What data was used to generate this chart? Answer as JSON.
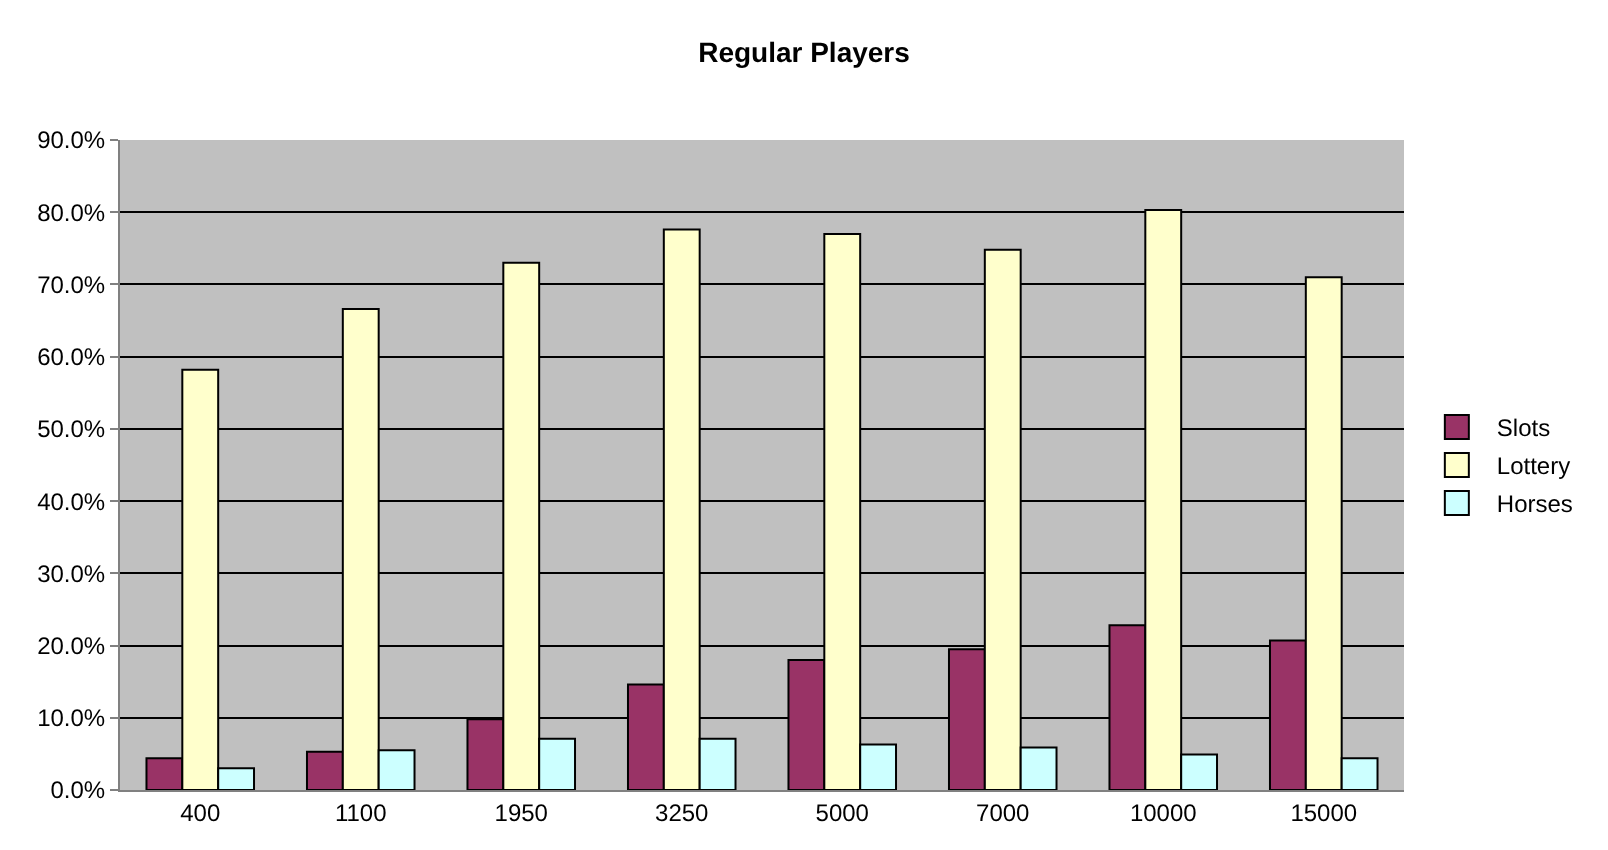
{
  "chart_data": {
    "type": "bar",
    "title": "Regular Players",
    "categories": [
      "400",
      "1100",
      "1950",
      "3250",
      "5000",
      "7000",
      "10000",
      "15000"
    ],
    "series": [
      {
        "name": "Slots",
        "color": "#993366",
        "values": [
          4.4,
          5.3,
          9.8,
          14.6,
          18.0,
          19.5,
          22.8,
          20.7
        ]
      },
      {
        "name": "Lottery",
        "color": "#ffffcc",
        "values": [
          58.2,
          66.6,
          73.0,
          77.6,
          77.0,
          74.8,
          80.3,
          71.0
        ]
      },
      {
        "name": "Horses",
        "color": "#ccffff",
        "values": [
          3.0,
          5.5,
          7.1,
          7.1,
          6.3,
          5.9,
          4.9,
          4.4
        ]
      }
    ],
    "ylim": [
      0,
      90
    ],
    "yticks": [
      {
        "value": 0,
        "label": "0.0%"
      },
      {
        "value": 10,
        "label": "10.0%"
      },
      {
        "value": 20,
        "label": "20.0%"
      },
      {
        "value": 30,
        "label": "30.0%"
      },
      {
        "value": 40,
        "label": "40.0%"
      },
      {
        "value": 50,
        "label": "50.0%"
      },
      {
        "value": 60,
        "label": "60.0%"
      },
      {
        "value": 70,
        "label": "70.0%"
      },
      {
        "value": 80,
        "label": "80.0%"
      },
      {
        "value": 90,
        "label": "90.0%"
      }
    ],
    "grid": "y",
    "legend": "right"
  }
}
